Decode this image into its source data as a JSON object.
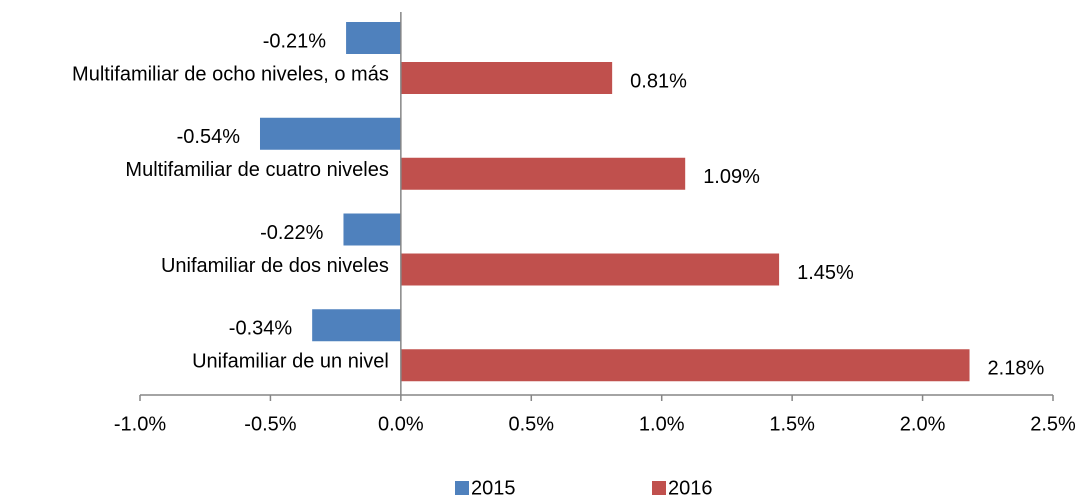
{
  "chart_data": {
    "type": "bar",
    "orientation": "horizontal",
    "categories": [
      "Multifamiliar de ocho niveles, o más",
      "Multifamiliar de cuatro niveles",
      "Unifamiliar de dos niveles",
      "Unifamiliar de un nivel"
    ],
    "series": [
      {
        "name": "2015",
        "color": "#4f81bd",
        "values": [
          -0.21,
          -0.54,
          -0.22,
          -0.34
        ],
        "value_labels": [
          "-0.21%",
          "-0.54%",
          "-0.22%",
          "-0.34%"
        ]
      },
      {
        "name": "2016",
        "color": "#c0504d",
        "values": [
          0.81,
          1.09,
          1.45,
          2.18
        ],
        "value_labels": [
          "0.81%",
          "1.09%",
          "1.45%",
          "2.18%"
        ]
      }
    ],
    "xlim": [
      -1.0,
      2.5
    ],
    "xticks": [
      {
        "value": -1.0,
        "label": "-1.0%"
      },
      {
        "value": -0.5,
        "label": "-0.5%"
      },
      {
        "value": 0,
        "label": "0.0%"
      },
      {
        "value": 0.5,
        "label": "0.5%"
      },
      {
        "value": 1.0,
        "label": "1.0%"
      },
      {
        "value": 1.5,
        "label": "1.5%"
      },
      {
        "value": 2.0,
        "label": "2.0%"
      },
      {
        "value": 2.5,
        "label": "2.5%"
      }
    ],
    "grid": false,
    "legend": "bottom"
  }
}
